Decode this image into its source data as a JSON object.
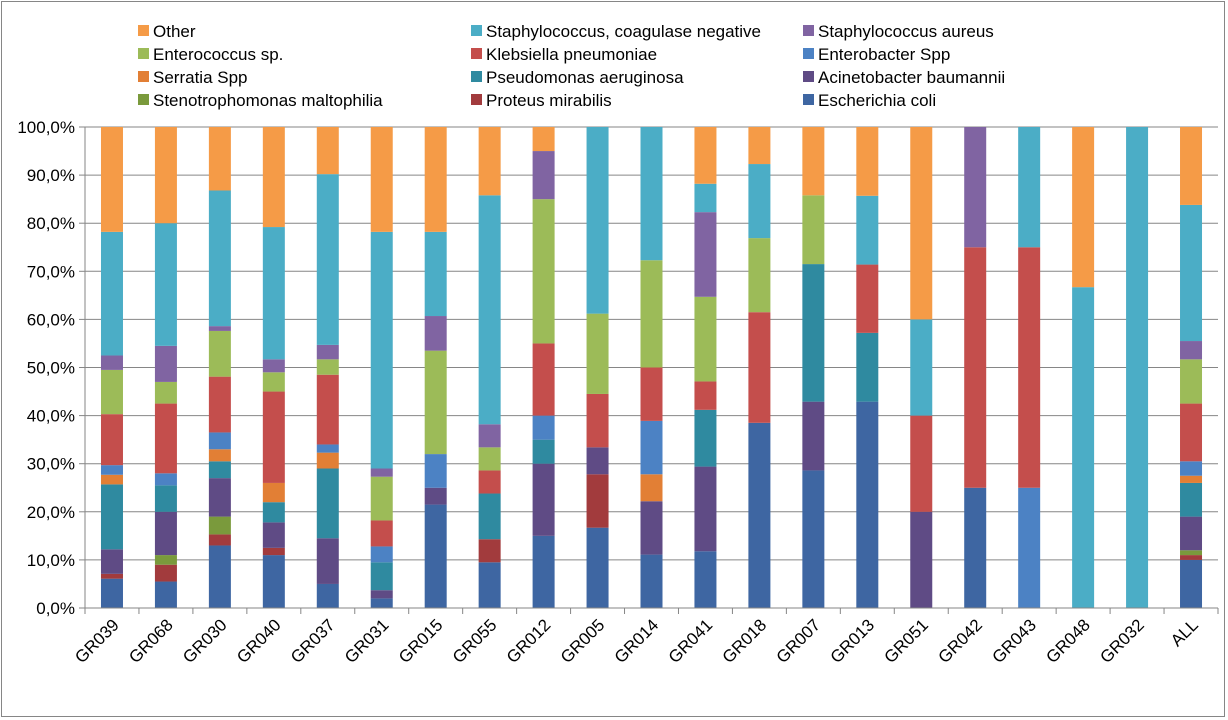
{
  "chart_data": {
    "type": "bar",
    "stacked": true,
    "normalized_percent": true,
    "categories": [
      "GR039",
      "GR068",
      "GR030",
      "GR040",
      "GR037",
      "GR031",
      "GR015",
      "GR055",
      "GR012",
      "GR005",
      "GR014",
      "GR041",
      "GR018",
      "GR007",
      "GR013",
      "GR051",
      "GR042",
      "GR043",
      "GR048",
      "GR032",
      "ALL"
    ],
    "y_ticks": [
      "0,0%",
      "10,0%",
      "20,0%",
      "30,0%",
      "40,0%",
      "50,0%",
      "60,0%",
      "70,0%",
      "80,0%",
      "90,0%",
      "100,0%"
    ],
    "ylim": [
      0,
      100
    ],
    "grid": true,
    "legend_position": "top",
    "series": [
      {
        "name": "Escherichia coli",
        "color": "#3e66a2",
        "values": [
          6.1,
          5.5,
          13.0,
          11.0,
          5.0,
          2.0,
          21.5,
          9.5,
          15.0,
          16.7,
          11.1,
          11.8,
          38.5,
          28.6,
          42.9,
          0,
          25.0,
          0,
          0,
          0,
          10.0
        ]
      },
      {
        "name": "Proteus mirabilis",
        "color": "#a23b3d",
        "values": [
          1.0,
          3.5,
          2.3,
          1.5,
          0,
          0,
          0,
          4.8,
          0,
          11.1,
          0,
          0,
          0,
          0,
          0,
          0,
          0,
          0,
          0,
          0,
          1.0
        ]
      },
      {
        "name": "Stenotrophomonas maltophilia",
        "color": "#7a9a3c",
        "values": [
          0,
          2.0,
          3.7,
          0,
          0,
          0,
          0,
          0,
          0,
          0,
          0,
          0,
          0,
          0,
          0,
          0,
          0,
          0,
          0,
          0,
          1.0
        ]
      },
      {
        "name": "Acinetobacter baumannii",
        "color": "#5f4b85",
        "values": [
          5.1,
          9.0,
          8.0,
          5.3,
          9.5,
          1.7,
          3.5,
          0,
          15.0,
          5.6,
          11.1,
          17.6,
          0,
          14.3,
          0,
          20.0,
          0,
          0,
          0,
          0,
          7.0
        ]
      },
      {
        "name": "Pseudomonas aeruginosa",
        "color": "#2f8aa0",
        "values": [
          13.5,
          5.5,
          3.5,
          4.2,
          14.5,
          5.8,
          0,
          9.5,
          5.0,
          0,
          0,
          11.8,
          0,
          28.6,
          14.3,
          0,
          0,
          0,
          0,
          0,
          7.0
        ]
      },
      {
        "name": "Serratia Spp",
        "color": "#e27f35",
        "values": [
          2.0,
          0,
          2.5,
          4.0,
          3.3,
          0,
          0,
          0,
          0,
          0,
          5.6,
          0,
          0,
          0,
          0,
          0,
          0,
          0,
          0,
          0,
          1.5
        ]
      },
      {
        "name": "Enterobacter Spp",
        "color": "#4c82c4",
        "values": [
          2.0,
          2.5,
          3.5,
          0,
          1.7,
          3.3,
          7.0,
          0,
          5.0,
          0,
          11.1,
          0,
          0,
          0,
          0,
          0,
          0,
          25.0,
          0,
          0,
          3.0
        ]
      },
      {
        "name": "Klebsiella pneumoniae",
        "color": "#c44e4c",
        "values": [
          10.6,
          14.5,
          11.6,
          19.0,
          14.5,
          5.4,
          0,
          4.8,
          15.0,
          11.1,
          11.1,
          5.9,
          23.0,
          0,
          14.2,
          20.0,
          50.0,
          50.0,
          0,
          0,
          12.0
        ]
      },
      {
        "name": "Enterococcus sp.",
        "color": "#9cbb58",
        "values": [
          9.2,
          4.5,
          9.5,
          4.0,
          3.2,
          9.1,
          21.5,
          4.8,
          30.0,
          16.7,
          22.3,
          17.6,
          15.4,
          14.3,
          0,
          0,
          0,
          0,
          0,
          0,
          9.2
        ]
      },
      {
        "name": "Staphylococcus aureus",
        "color": "#8064a2",
        "values": [
          3.0,
          7.5,
          1.0,
          2.7,
          3.0,
          1.7,
          7.2,
          4.8,
          10.0,
          0,
          0,
          17.6,
          0,
          0,
          0,
          0,
          25.0,
          0,
          0,
          0,
          3.8
        ]
      },
      {
        "name": "Staphylococcus, coagulase negative",
        "color": "#4badc6",
        "values": [
          25.7,
          25.5,
          28.2,
          27.5,
          35.5,
          49.2,
          17.5,
          47.6,
          0,
          38.8,
          27.7,
          5.9,
          15.4,
          0,
          14.3,
          20.0,
          0,
          25.0,
          66.7,
          100.0,
          28.3
        ]
      },
      {
        "name": "Other",
        "color": "#f59b47",
        "values": [
          21.8,
          20.0,
          13.2,
          20.8,
          9.8,
          21.8,
          21.8,
          14.2,
          5.0,
          0,
          0,
          11.8,
          7.7,
          14.2,
          14.3,
          40.0,
          0,
          0,
          33.3,
          0,
          16.2
        ]
      }
    ],
    "legend_order": [
      "Other",
      "Staphylococcus, coagulase negative",
      "Staphylococcus aureus",
      "Enterococcus sp.",
      "Klebsiella pneumoniae",
      "Enterobacter Spp",
      "Serratia Spp",
      "Pseudomonas aeruginosa",
      "Acinetobacter baumannii",
      "Stenotrophomonas maltophilia",
      "Proteus mirabilis",
      "Escherichia coli"
    ]
  }
}
